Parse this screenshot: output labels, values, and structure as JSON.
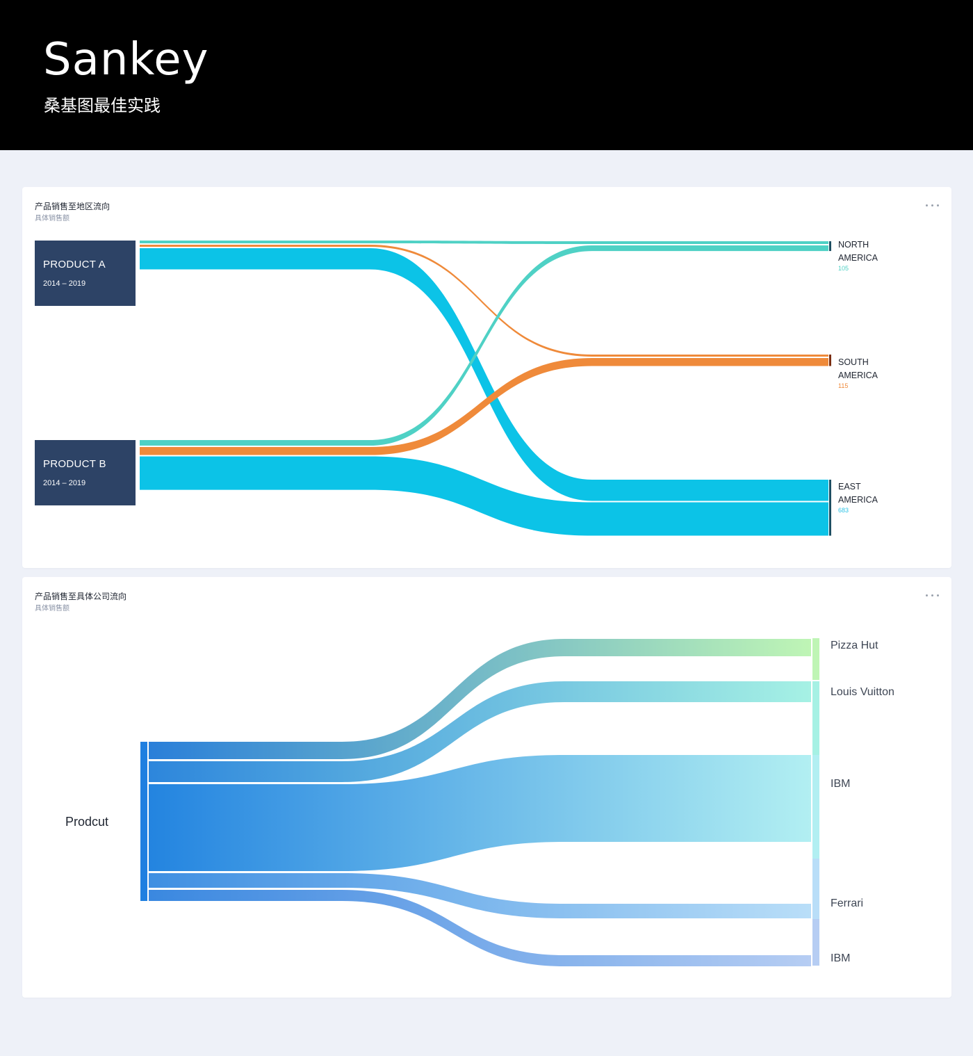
{
  "header": {
    "title": "Sankey",
    "subtitle": "桑基图最佳实践"
  },
  "card1": {
    "title": "产品销售至地区流向",
    "subtitle": "具体销售额"
  },
  "card2": {
    "title": "产品销售至具体公司流向",
    "subtitle": "具体销售额"
  },
  "colors": {
    "header_bg": "#000000",
    "page_bg": "#eef1f8",
    "node_box": "#2d4366",
    "teal": "#4fd1c5",
    "orange": "#ef8a3a",
    "cyan": "#0cc3e7",
    "blue_start": "#1f7fe0"
  },
  "chart_data": [
    {
      "type": "sankey",
      "title": "产品销售至地区流向",
      "subtitle": "具体销售额",
      "sources": [
        {
          "name": "PRODUCT A",
          "years": "2014 – 2019"
        },
        {
          "name": "PRODUCT B",
          "years": "2014 – 2019"
        }
      ],
      "targets": [
        {
          "name_lines": [
            "NORTH",
            "AMERICA"
          ],
          "value": "105",
          "color": "#4fd1c5",
          "bar_color": "#1f4f63"
        },
        {
          "name_lines": [
            "SOUTH",
            "AMERICA"
          ],
          "value": "115",
          "color": "#ef8a3a",
          "bar_color": "#7a2e12"
        },
        {
          "name_lines": [
            "EAST",
            "AMERICA"
          ],
          "value": "683",
          "color": "#2cc3e6",
          "bar_color": "#1f4f63"
        }
      ],
      "links": [
        {
          "source": "PRODUCT A",
          "target": "NORTH AMERICA",
          "value": 35,
          "color": "#4fd1c5"
        },
        {
          "source": "PRODUCT A",
          "target": "SOUTH AMERICA",
          "value": 15,
          "color": "#ef8a3a"
        },
        {
          "source": "PRODUCT A",
          "target": "EAST AMERICA",
          "value": 265,
          "color": "#0cc3e7"
        },
        {
          "source": "PRODUCT B",
          "target": "NORTH AMERICA",
          "value": 70,
          "color": "#4fd1c5"
        },
        {
          "source": "PRODUCT B",
          "target": "SOUTH AMERICA",
          "value": 100,
          "color": "#ef8a3a"
        },
        {
          "source": "PRODUCT B",
          "target": "EAST AMERICA",
          "value": 418,
          "color": "#0cc3e7"
        }
      ]
    },
    {
      "type": "sankey",
      "title": "产品销售至具体公司流向",
      "subtitle": "具体销售额",
      "source": "Prodcut",
      "targets": [
        {
          "name": "Pizza Hut",
          "color": "#bff5b5"
        },
        {
          "name": "Louis Vuitton",
          "color": "#a6f1e4"
        },
        {
          "name": "IBM",
          "color": "#b2eff2"
        },
        {
          "name": "Ferrari",
          "color": "#b9def8"
        },
        {
          "name": "IBM",
          "color": "#b6cdf3"
        }
      ],
      "links": [
        {
          "target_index": 0,
          "value": 25,
          "start_color": "#2a7fd9",
          "end_color": "#bff5b5"
        },
        {
          "target_index": 1,
          "value": 30,
          "start_color": "#2d86dc",
          "end_color": "#a6f1e4"
        },
        {
          "target_index": 2,
          "value": 125,
          "start_color": "#2384e0",
          "end_color": "#b2eff2"
        },
        {
          "target_index": 3,
          "value": 21,
          "start_color": "#3f8fe2",
          "end_color": "#b9def8"
        },
        {
          "target_index": 4,
          "value": 16,
          "start_color": "#3a88e0",
          "end_color": "#b6cdf3"
        }
      ]
    }
  ]
}
